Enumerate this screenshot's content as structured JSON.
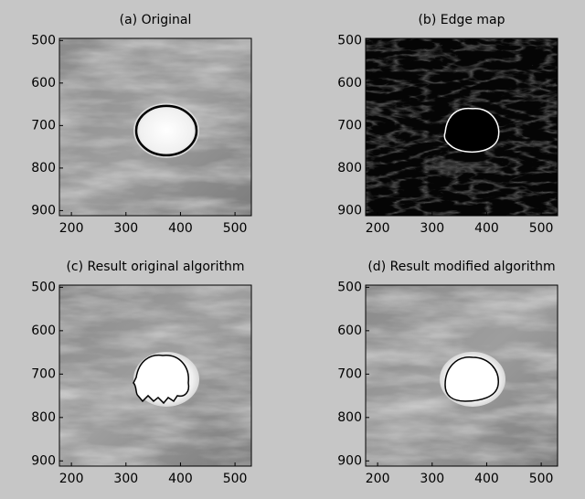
{
  "panels": [
    {
      "title": "(a) Original",
      "xticks": [
        200,
        300,
        400,
        500
      ],
      "yticks": [
        500,
        600,
        700,
        800,
        900
      ],
      "xlim": [
        178,
        530
      ],
      "ylim": [
        495,
        912
      ]
    },
    {
      "title": "(b) Edge map",
      "xticks": [
        200,
        300,
        400,
        500
      ],
      "yticks": [
        500,
        600,
        700,
        800,
        900
      ],
      "xlim": [
        178,
        530
      ],
      "ylim": [
        495,
        912
      ]
    },
    {
      "title": "(c) Result original algorithm",
      "xticks": [
        200,
        300,
        400,
        500
      ],
      "yticks": [
        500,
        600,
        700,
        800,
        900
      ],
      "xlim": [
        178,
        530
      ],
      "ylim": [
        495,
        912
      ]
    },
    {
      "title": "(d) Result modified algorithm",
      "xticks": [
        200,
        300,
        400,
        500
      ],
      "yticks": [
        500,
        600,
        700,
        800,
        900
      ],
      "xlim": [
        178,
        530
      ],
      "ylim": [
        495,
        912
      ]
    }
  ]
}
